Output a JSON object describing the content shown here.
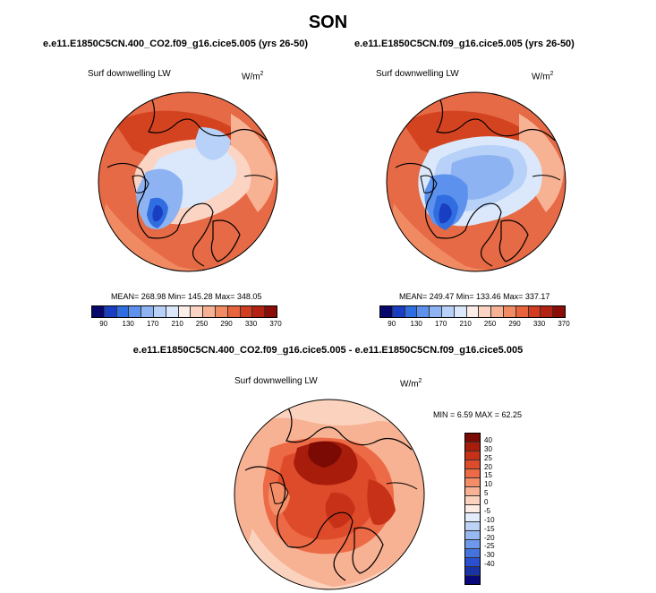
{
  "chart_data": {
    "type": "contour-map",
    "title": "SON",
    "panels": [
      {
        "case": "e.e11.E1850C5CN.400_CO2.f09_g16.cice5.005 (yrs 26-50)",
        "variable": "Surf downwelling LW",
        "units": "W/m",
        "units_exp": "2",
        "stats": "MEAN= 268.98  Min= 145.28  Max= 348.05",
        "colorbar_ticks": [
          "90",
          "130",
          "170",
          "210",
          "250",
          "290",
          "330",
          "370"
        ],
        "colorbar_colors": [
          "#08086b",
          "#1a3ec1",
          "#2f6de0",
          "#5c92ee",
          "#8db3f2",
          "#b7d1f8",
          "#dbe8fb",
          "#fbeee8",
          "#fbd4c4",
          "#f7b193",
          "#f28a63",
          "#e8643d",
          "#d23c20",
          "#b32213",
          "#8c0d07"
        ]
      },
      {
        "case": "e.e11.E1850C5CN.f09_g16.cice5.005 (yrs 26-50)",
        "variable": "Surf downwelling LW",
        "units": "W/m",
        "units_exp": "2",
        "stats": "MEAN= 249.47  Min= 133.46  Max= 337.17",
        "colorbar_ticks": [
          "90",
          "130",
          "170",
          "210",
          "250",
          "290",
          "330",
          "370"
        ],
        "colorbar_colors": [
          "#08086b",
          "#1a3ec1",
          "#2f6de0",
          "#5c92ee",
          "#8db3f2",
          "#b7d1f8",
          "#dbe8fb",
          "#fbeee8",
          "#fbd4c4",
          "#f7b193",
          "#f28a63",
          "#e8643d",
          "#d23c20",
          "#b32213",
          "#8c0d07"
        ]
      }
    ],
    "difference": {
      "title": "e.e11.E1850C5CN.400_CO2.f09_g16.cice5.005 - e.e11.E1850C5CN.f09_g16.cice5.005",
      "variable": "Surf downwelling LW",
      "units": "W/m",
      "units_exp": "2",
      "stats": "MIN =  6.59 MAX =  62.25",
      "colorbar_ticks": [
        "40",
        "30",
        "25",
        "20",
        "15",
        "10",
        "5",
        "0",
        "-5",
        "-10",
        "-15",
        "-20",
        "-25",
        "-30",
        "-40"
      ],
      "colorbar_colors": [
        "#7a0a03",
        "#a81c0c",
        "#c73118",
        "#de4b2a",
        "#ec6a45",
        "#f38e68",
        "#f7b193",
        "#fbd2bd",
        "#fcece3",
        "#e3ecfb",
        "#bdd3f6",
        "#97b8f1",
        "#6e98ea",
        "#4573de",
        "#2a4fcf",
        "#1733a6",
        "#08087a"
      ]
    }
  }
}
